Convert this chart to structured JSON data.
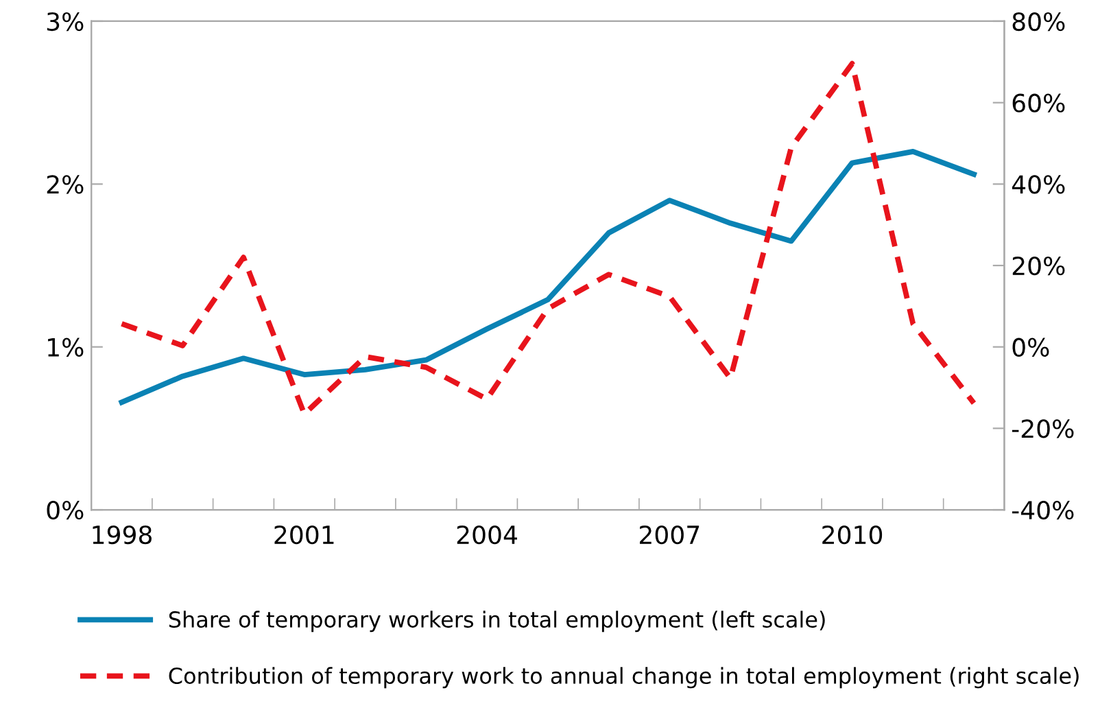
{
  "chart_data": {
    "type": "line",
    "categories": [
      "1998",
      null,
      null,
      "2001",
      null,
      null,
      "2004",
      null,
      null,
      "2007",
      null,
      null,
      "2010",
      null,
      null
    ],
    "series": [
      {
        "name": "Share of temporary workers in total employment (left scale)",
        "color": "#0a82b4",
        "values": [
          0.66,
          0.82,
          0.93,
          0.83,
          0.86,
          0.92,
          1.11,
          1.29,
          1.7,
          1.9,
          1.76,
          1.65,
          2.13,
          2.2,
          2.06
        ],
        "line_style": "solid"
      },
      {
        "name": "Contribution of temporary work to annual change in total employment (right scale)",
        "color": "#e8141c",
        "axis": "y2",
        "values": [
          5.7,
          0.3,
          22,
          -16.5,
          -2.4,
          -5,
          -12.8,
          9.4,
          17.8,
          12.4,
          -7.7,
          49,
          69.6,
          5.7,
          -13.8
        ],
        "line_style": "dashed"
      }
    ],
    "ylim": [
      0,
      3
    ],
    "yticks": [
      {
        "value": 0,
        "label": "0%"
      },
      {
        "value": 1,
        "label": "1%"
      },
      {
        "value": 2,
        "label": "2%"
      },
      {
        "value": 3,
        "label": "3%"
      }
    ],
    "y2lim": [
      -40,
      80
    ],
    "y2ticks": [
      {
        "value": -40,
        "label": "-40%"
      },
      {
        "value": -20,
        "label": "-20%"
      },
      {
        "value": 0,
        "label": "0%"
      },
      {
        "value": 20,
        "label": "20%"
      },
      {
        "value": 40,
        "label": "40%"
      },
      {
        "value": 60,
        "label": "60%"
      },
      {
        "value": 80,
        "label": "80%"
      }
    ],
    "grid": false,
    "legend": "bottom",
    "marker": "none"
  }
}
